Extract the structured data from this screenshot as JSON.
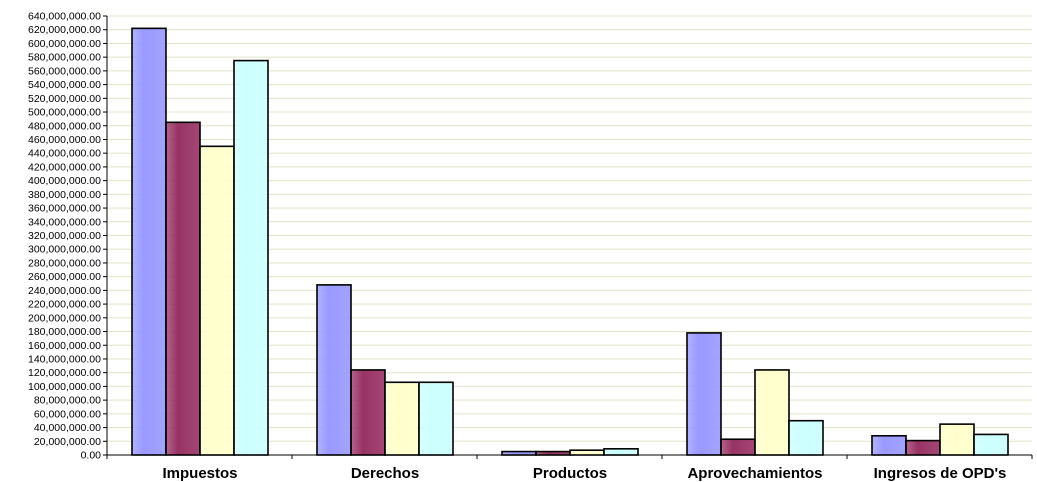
{
  "chart_data": {
    "type": "bar",
    "categories": [
      "Impuestos",
      "Derechos",
      "Productos",
      "Aprovechamientos",
      "Ingresos de OPD's"
    ],
    "series": [
      {
        "values": [
          622000000,
          248000000,
          5000000,
          178000000,
          28000000
        ]
      },
      {
        "values": [
          485000000,
          124000000,
          5000000,
          23000000,
          21000000
        ]
      },
      {
        "values": [
          450000000,
          106000000,
          7000000,
          124000000,
          45000000
        ]
      },
      {
        "values": [
          575000000,
          106000000,
          9000000,
          50000000,
          30000000
        ]
      }
    ],
    "title": "",
    "xlabel": "",
    "ylabel": "",
    "ylim": [
      0,
      640000000
    ],
    "ytick_step": 20000000,
    "ytick_labels": [
      "0.00",
      "20,000,000.00",
      "40,000,000.00",
      "60,000,000.00",
      "80,000,000.00",
      "100,000,000.00",
      "120,000,000.00",
      "140,000,000.00",
      "160,000,000.00",
      "180,000,000.00",
      "200,000,000.00",
      "220,000,000.00",
      "240,000,000.00",
      "260,000,000.00",
      "280,000,000.00",
      "300,000,000.00",
      "320,000,000.00",
      "340,000,000.00",
      "360,000,000.00",
      "380,000,000.00",
      "400,000,000.00",
      "420,000,000.00",
      "440,000,000.00",
      "460,000,000.00",
      "480,000,000.00",
      "500,000,000.00",
      "520,000,000.00",
      "540,000,000.00",
      "560,000,000.00",
      "580,000,000.00",
      "600,000,000.00",
      "620,000,000.00",
      "640,000,000.00"
    ],
    "grid": true,
    "legend": "none",
    "colors": {
      "series": [
        "#9999ff",
        "#993366",
        "#ffffcc",
        "#ccffff"
      ],
      "gridline": "#e3e3c8",
      "axis": "#000000"
    }
  }
}
